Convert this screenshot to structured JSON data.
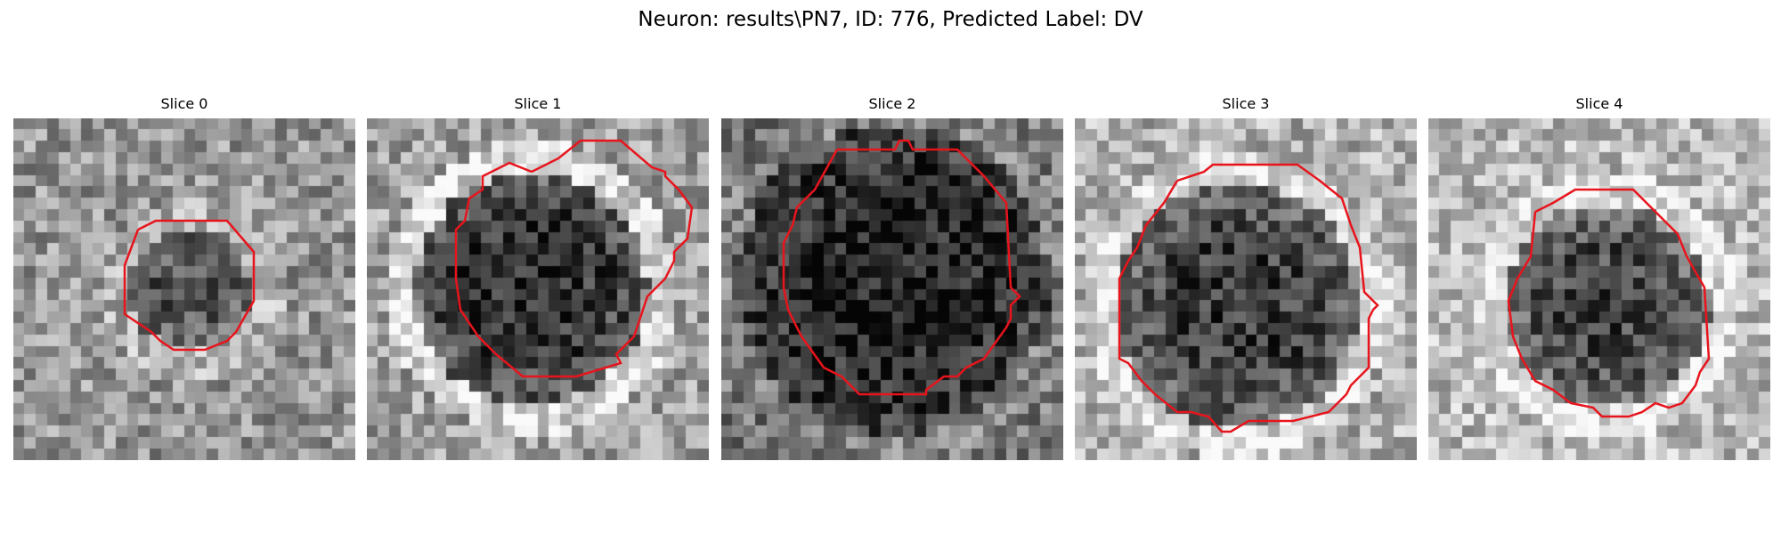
{
  "figure": {
    "title": "Neuron: results\\PN7, ID: 776, Predicted Label: DV"
  },
  "slices": [
    {
      "title": "Slice 0",
      "contour_color": "#e8141c"
    },
    {
      "title": "Slice 1",
      "contour_color": "#e8141c"
    },
    {
      "title": "Slice 2",
      "contour_color": "#e8141c"
    },
    {
      "title": "Slice 3",
      "contour_color": "#e8141c"
    },
    {
      "title": "Slice 4",
      "contour_color": "#e8141c"
    }
  ]
}
